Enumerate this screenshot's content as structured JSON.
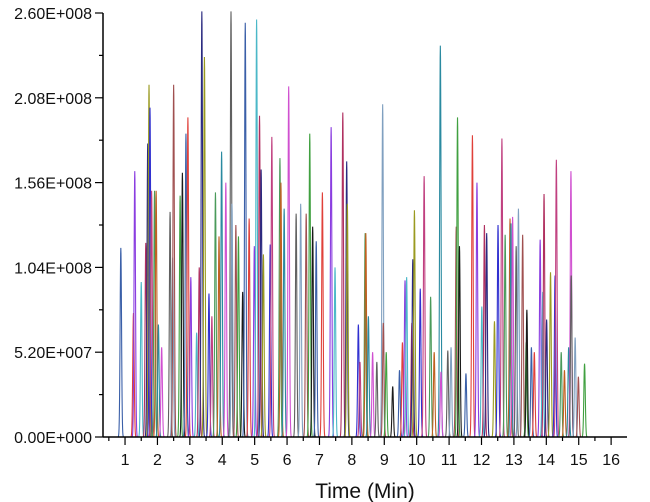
{
  "chart_data": {
    "type": "line",
    "subtype": "overlaid chromatogram peaks",
    "title": "",
    "xlabel": "Time (Min)",
    "ylabel": "",
    "xlim": [
      0.32,
      16.49
    ],
    "ylim": [
      0,
      260000000
    ],
    "x_ticks": [
      "1",
      "2",
      "3",
      "4",
      "5",
      "6",
      "7",
      "8",
      "9",
      "10",
      "11",
      "12",
      "13",
      "14",
      "15",
      "16"
    ],
    "x_tick_values": [
      1,
      2,
      3,
      4,
      5,
      6,
      7,
      8,
      9,
      10,
      11,
      12,
      13,
      14,
      15,
      16
    ],
    "y_ticks": [
      "0.00E+000",
      "5.20E+007",
      "1.04E+008",
      "1.56E+008",
      "2.08E+008",
      "2.60E+008"
    ],
    "y_tick_values": [
      0,
      52000000,
      104000000,
      156000000,
      208000000,
      260000000
    ],
    "grid": false,
    "legend": "none",
    "peak_height_unit": 1000000,
    "palette": [
      "#3a5fa8",
      "#e0403a",
      "#8a3de0",
      "#4bb8c8",
      "#b03060",
      "#2a2a80",
      "#9a9a20",
      "#3030d0",
      "#c04080",
      "#4a9a5a",
      "#c06020",
      "#2a8aa0",
      "#d050d0",
      "#606060",
      "#80a0c0",
      "#a05050",
      "#40a040",
      "#1a1a1a"
    ],
    "peaks": [
      [
        0.87,
        116
      ],
      [
        1.26,
        76
      ],
      [
        1.3,
        163
      ],
      [
        1.5,
        95
      ],
      [
        1.64,
        119
      ],
      [
        1.7,
        180
      ],
      [
        1.74,
        216
      ],
      [
        1.77,
        202
      ],
      [
        1.82,
        151
      ],
      [
        1.91,
        151
      ],
      [
        1.96,
        151
      ],
      [
        2.03,
        69
      ],
      [
        2.13,
        55
      ],
      [
        2.39,
        138
      ],
      [
        2.47,
        110
      ],
      [
        2.5,
        216
      ],
      [
        2.7,
        148
      ],
      [
        2.77,
        162
      ],
      [
        2.88,
        186
      ],
      [
        2.94,
        196
      ],
      [
        3.03,
        98
      ],
      [
        3.21,
        64
      ],
      [
        3.29,
        104
      ],
      [
        3.37,
        261
      ],
      [
        3.45,
        233
      ],
      [
        3.59,
        88
      ],
      [
        3.68,
        74
      ],
      [
        3.79,
        150
      ],
      [
        3.9,
        123
      ],
      [
        3.98,
        175
      ],
      [
        4.11,
        156
      ],
      [
        4.27,
        261
      ],
      [
        4.3,
        143
      ],
      [
        4.42,
        130
      ],
      [
        4.5,
        123
      ],
      [
        4.63,
        89
      ],
      [
        4.71,
        254
      ],
      [
        4.83,
        134
      ],
      [
        4.99,
        117
      ],
      [
        5.06,
        256
      ],
      [
        5.15,
        197
      ],
      [
        5.2,
        164
      ],
      [
        5.27,
        112
      ],
      [
        5.48,
        118
      ],
      [
        5.53,
        184
      ],
      [
        5.78,
        171
      ],
      [
        5.81,
        156
      ],
      [
        5.91,
        140
      ],
      [
        6.05,
        215
      ],
      [
        6.28,
        137
      ],
      [
        6.42,
        143
      ],
      [
        6.59,
        137
      ],
      [
        6.7,
        186
      ],
      [
        6.79,
        129
      ],
      [
        6.9,
        120
      ],
      [
        7.09,
        150
      ],
      [
        7.36,
        190
      ],
      [
        7.48,
        104
      ],
      [
        7.72,
        199
      ],
      [
        7.84,
        169
      ],
      [
        7.86,
        143
      ],
      [
        8.2,
        69
      ],
      [
        8.25,
        46
      ],
      [
        8.41,
        125
      ],
      [
        8.43,
        125
      ],
      [
        8.51,
        74
      ],
      [
        8.64,
        52
      ],
      [
        8.77,
        46
      ],
      [
        8.95,
        204
      ],
      [
        8.97,
        70
      ],
      [
        9.06,
        52
      ],
      [
        9.26,
        31
      ],
      [
        9.47,
        41
      ],
      [
        9.56,
        58
      ],
      [
        9.64,
        96
      ],
      [
        9.69,
        98
      ],
      [
        9.85,
        70
      ],
      [
        9.88,
        109
      ],
      [
        9.93,
        139
      ],
      [
        10.11,
        91
      ],
      [
        10.23,
        160
      ],
      [
        10.43,
        86
      ],
      [
        10.54,
        52
      ],
      [
        10.73,
        240
      ],
      [
        10.75,
        40
      ],
      [
        10.96,
        53
      ],
      [
        11.06,
        55
      ],
      [
        11.22,
        129
      ],
      [
        11.26,
        196
      ],
      [
        11.32,
        117
      ],
      [
        11.52,
        39
      ],
      [
        11.72,
        185
      ],
      [
        11.86,
        156
      ],
      [
        12.01,
        80
      ],
      [
        12.09,
        130
      ],
      [
        12.16,
        125
      ],
      [
        12.4,
        71
      ],
      [
        12.51,
        130
      ],
      [
        12.63,
        183
      ],
      [
        12.73,
        124
      ],
      [
        12.88,
        134
      ],
      [
        12.91,
        131
      ],
      [
        12.96,
        135
      ],
      [
        13.07,
        117
      ],
      [
        13.14,
        140
      ],
      [
        13.27,
        124
      ],
      [
        13.38,
        58
      ],
      [
        13.4,
        78
      ],
      [
        13.54,
        55
      ],
      [
        13.63,
        52
      ],
      [
        13.81,
        121
      ],
      [
        13.89,
        89
      ],
      [
        13.93,
        149
      ],
      [
        14.01,
        72
      ],
      [
        14.13,
        101
      ],
      [
        14.27,
        99
      ],
      [
        14.31,
        170
      ],
      [
        14.46,
        52
      ],
      [
        14.56,
        41
      ],
      [
        14.69,
        55
      ],
      [
        14.76,
        163
      ],
      [
        14.77,
        99
      ],
      [
        14.89,
        61
      ],
      [
        14.99,
        37
      ],
      [
        15.18,
        45
      ]
    ]
  }
}
